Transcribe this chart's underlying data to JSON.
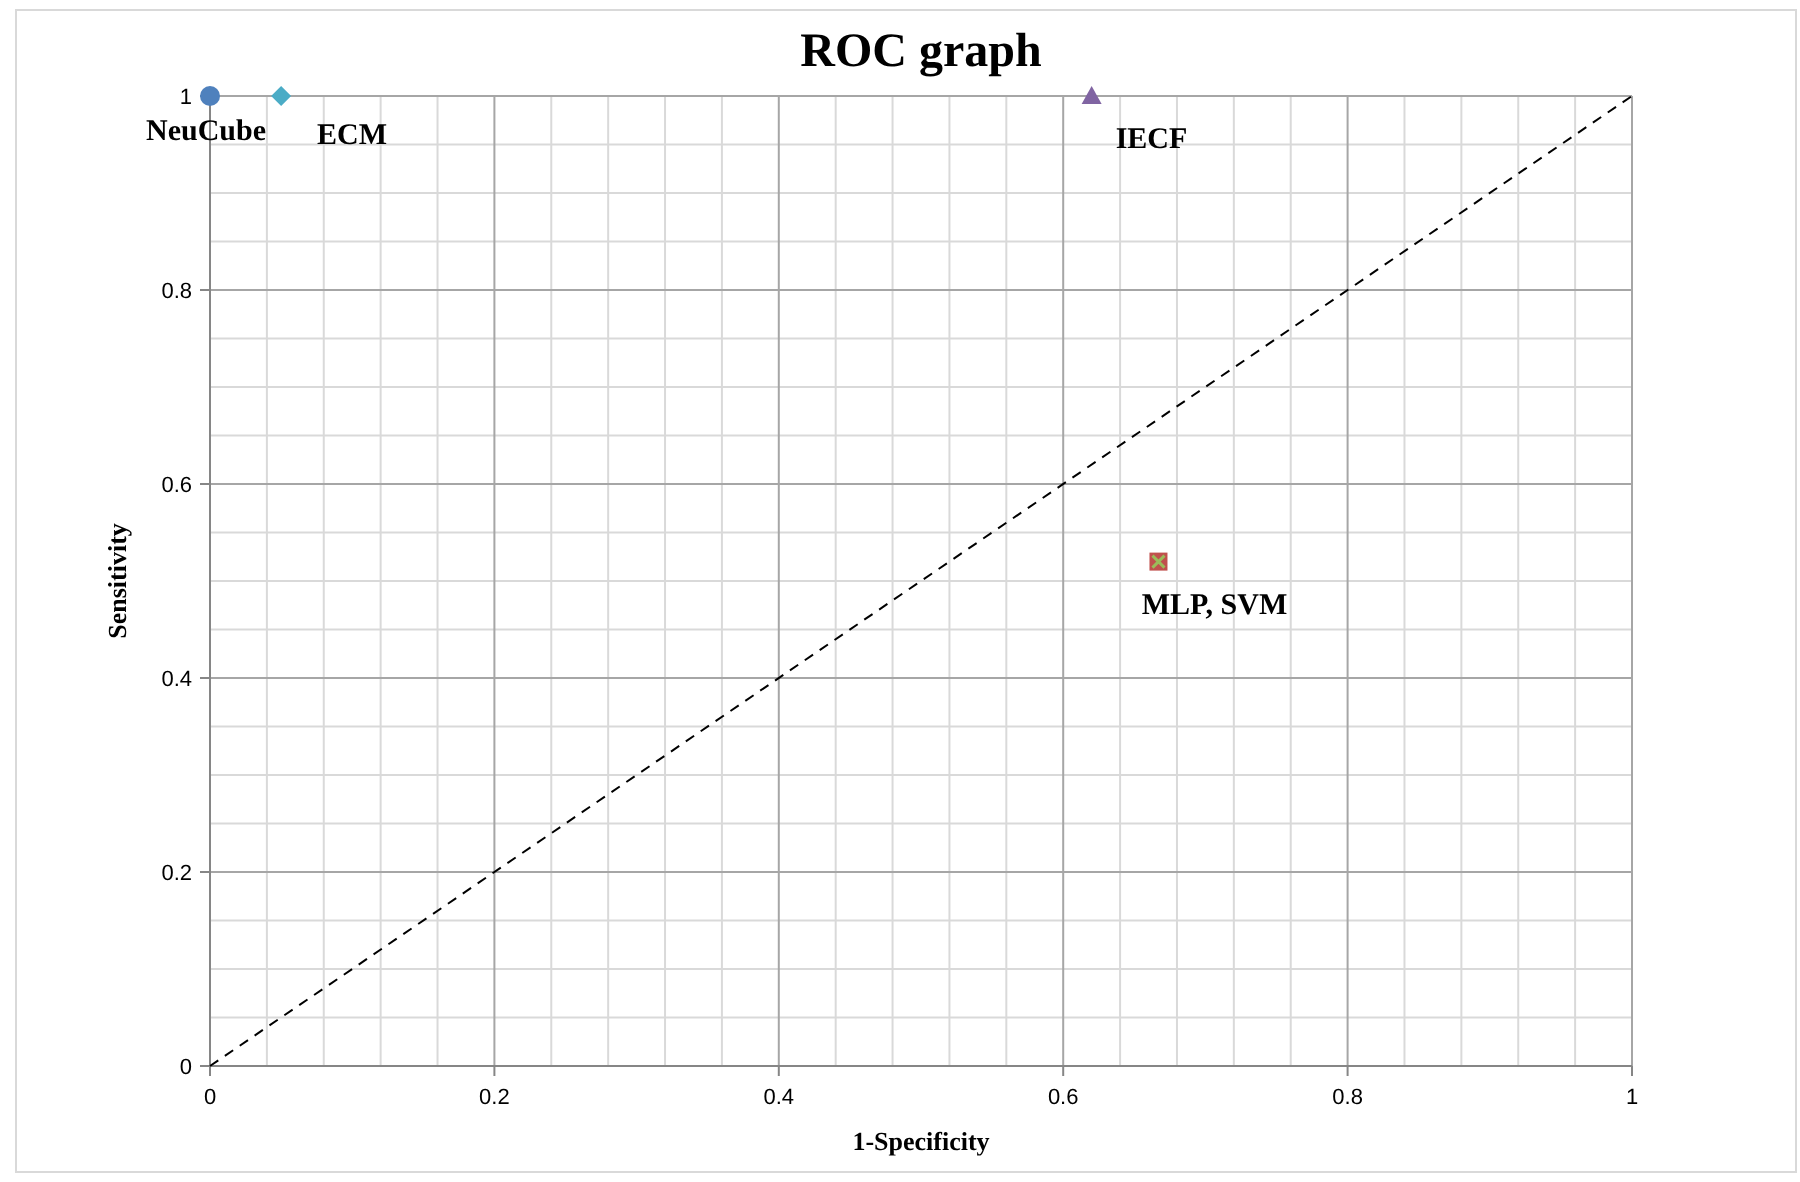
{
  "chart_data": {
    "type": "scatter",
    "title": "ROC graph",
    "xlabel": "1-Specificity",
    "ylabel": "Sensitivity",
    "xlim": [
      0,
      1
    ],
    "ylim": [
      0,
      1
    ],
    "xticks": [
      0,
      0.2,
      0.4,
      0.6,
      0.8,
      1
    ],
    "yticks": [
      0,
      0.2,
      0.4,
      0.6,
      0.8,
      1
    ],
    "grid": true,
    "series": [
      {
        "name": "NeuCube",
        "color": "#4f81bd",
        "marker": "circle",
        "x": [
          0
        ],
        "values": [
          1
        ]
      },
      {
        "name": "ECM",
        "color": "#4bacc6",
        "marker": "diamond",
        "x": [
          0.05
        ],
        "values": [
          1
        ]
      },
      {
        "name": "IECF",
        "color": "#8064a2",
        "marker": "triangle",
        "x": [
          0.62
        ],
        "values": [
          1
        ]
      },
      {
        "color": "#c0504d",
        "marker": "square",
        "x": [
          0.667
        ],
        "values": [
          0.52
        ]
      },
      {
        "color": "#9bbb59",
        "marker": "cross",
        "x": [
          0.667
        ],
        "values": [
          0.52
        ]
      },
      {
        "type": "line",
        "color": "#000000",
        "line_style": "dashed",
        "x": [
          0,
          1
        ],
        "values": [
          0,
          1
        ]
      }
    ],
    "annotations": [
      {
        "text": "MLP, SVM",
        "x": 0.667,
        "y": 0.52
      }
    ]
  }
}
